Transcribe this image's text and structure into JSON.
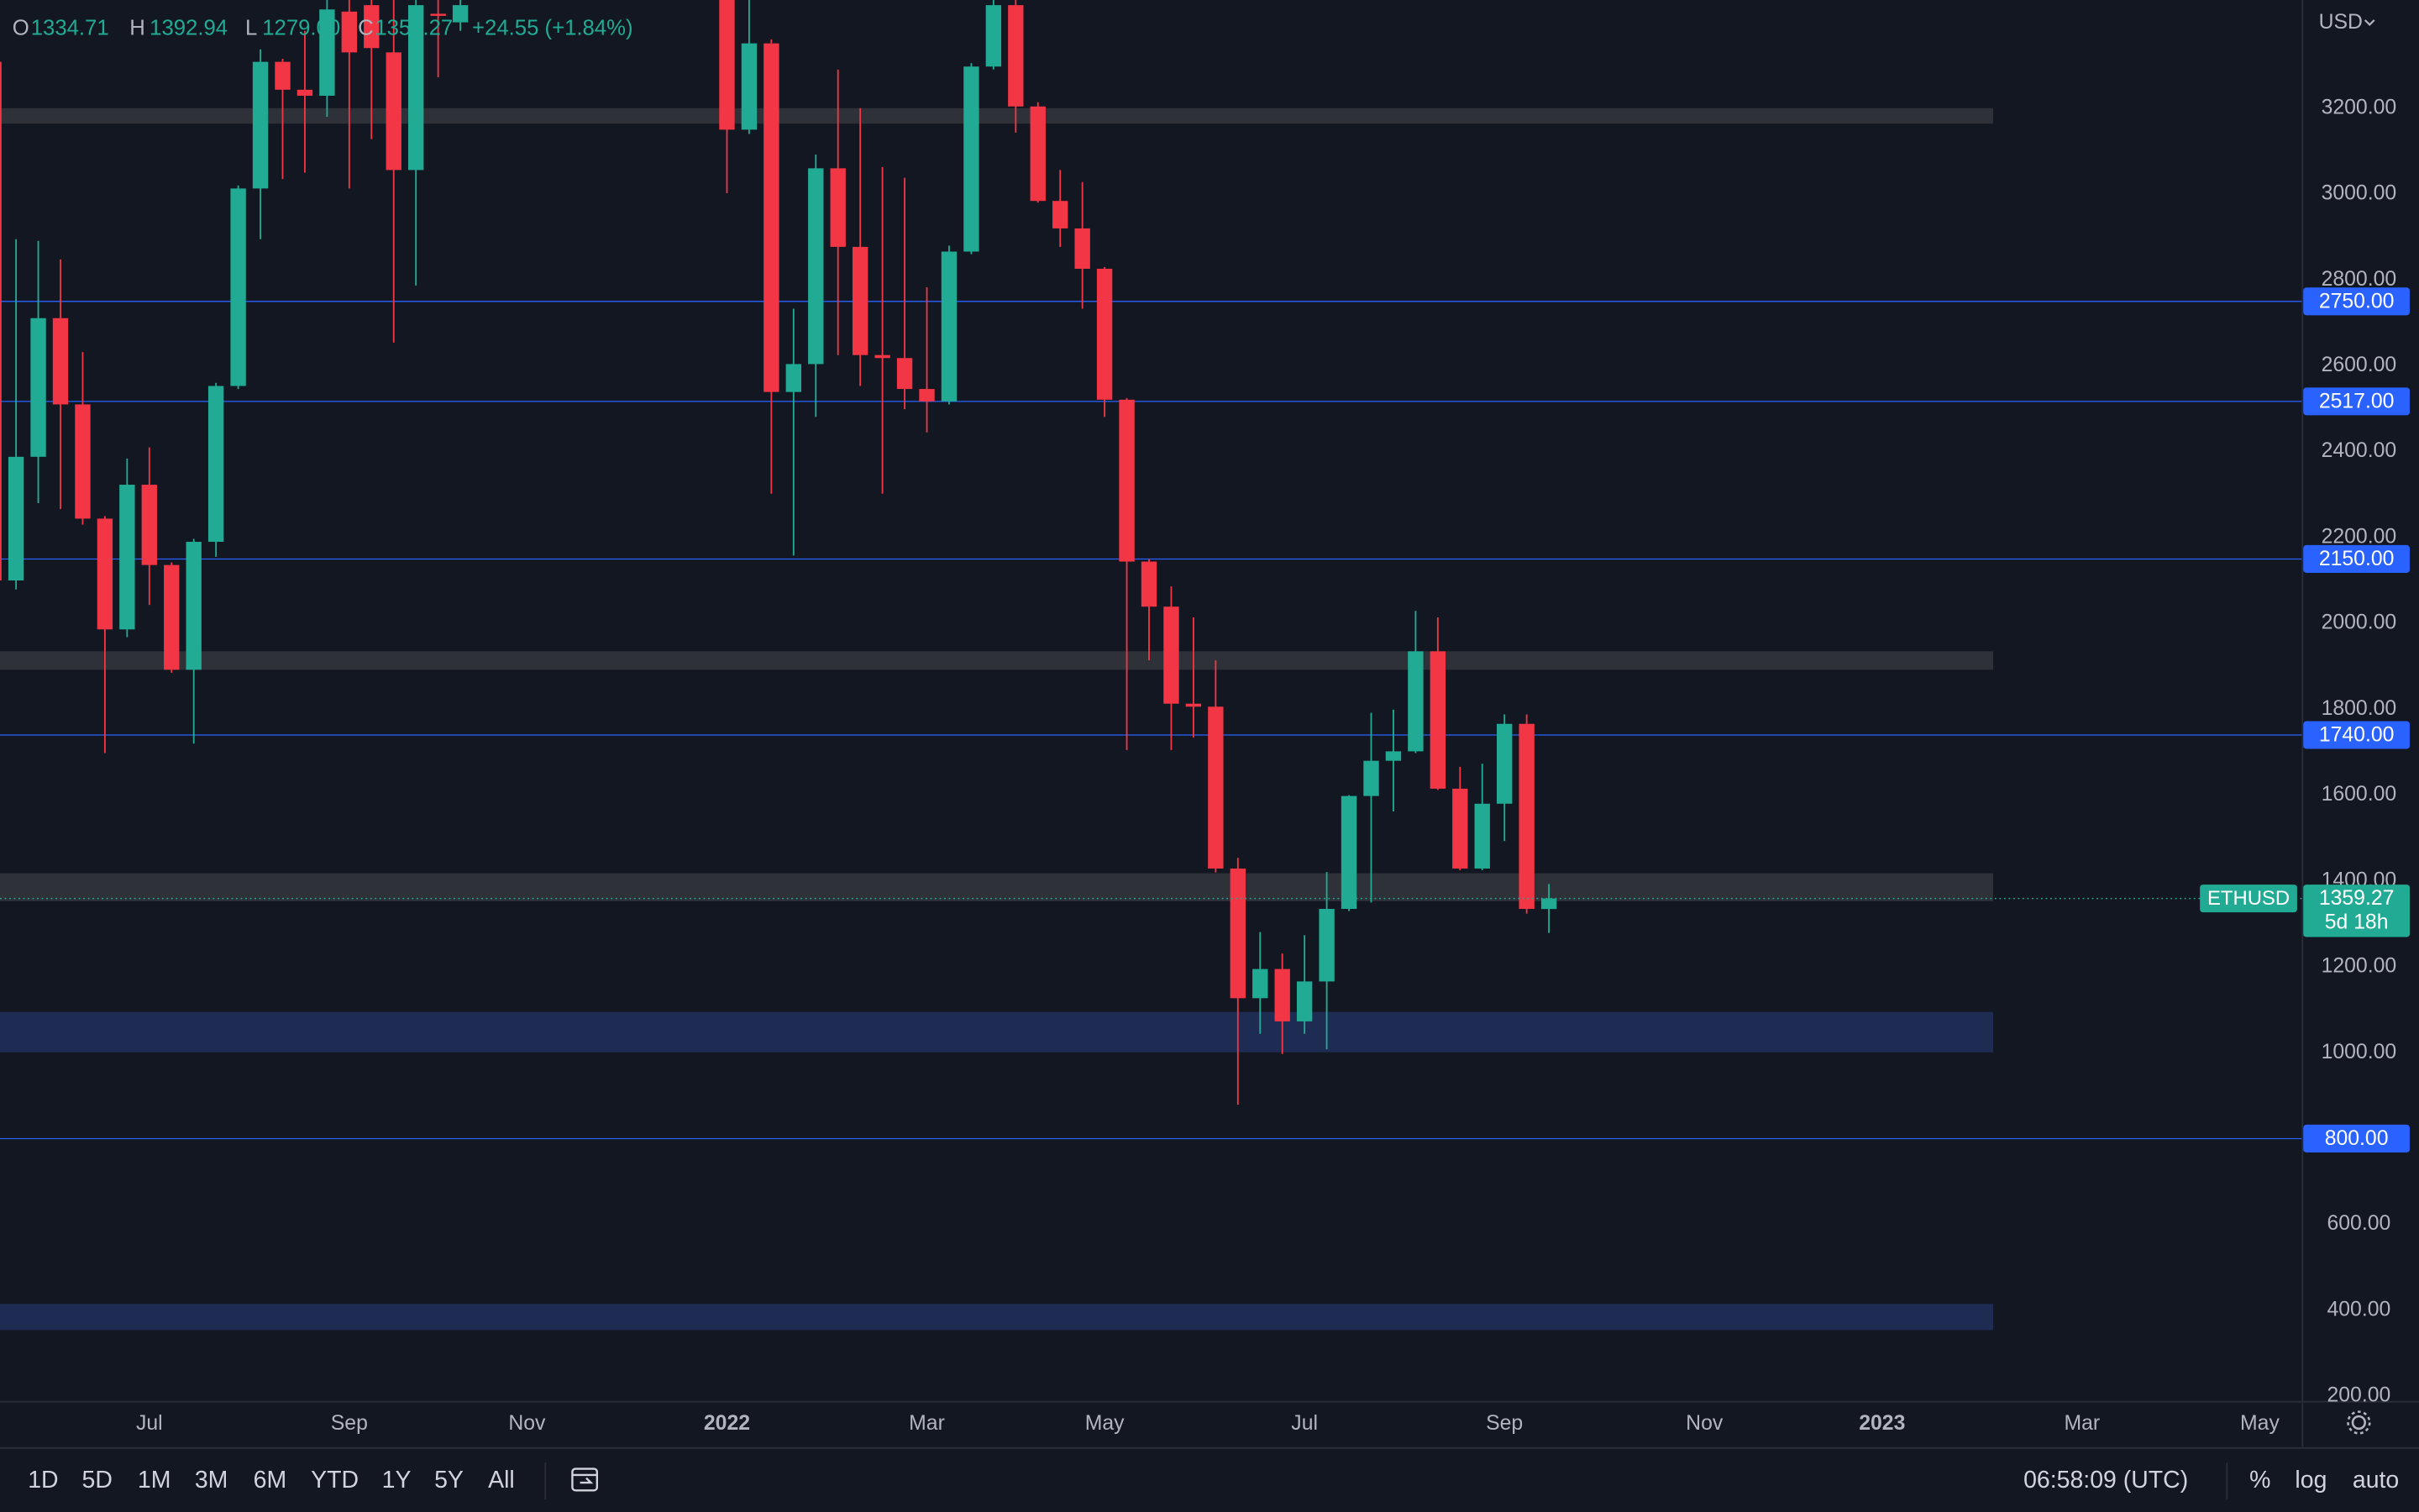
{
  "chart_data": {
    "type": "candlestick",
    "symbol": "ETHUSD",
    "countdown": "5d 18h",
    "up_color": "#22ab94",
    "down_color": "#f23645",
    "grid": false,
    "categories": [
      null,
      null,
      null,
      null,
      null,
      null,
      null,
      "Jul",
      null,
      null,
      null,
      null,
      null,
      null,
      null,
      null,
      "Sep",
      null,
      null,
      null,
      null,
      null,
      null,
      null,
      "Nov",
      null,
      null,
      null,
      null,
      null,
      null,
      null,
      null,
      "2022",
      null,
      null,
      null,
      null,
      null,
      null,
      null,
      null,
      "Mar",
      null,
      null,
      null,
      null,
      null,
      null,
      null,
      "May",
      null,
      null,
      null,
      null,
      null,
      null,
      null,
      null,
      "Jul",
      null,
      null,
      null,
      null,
      null,
      null,
      null,
      null,
      "Sep",
      null,
      null,
      null,
      null,
      null,
      null,
      null,
      null,
      "Nov",
      null,
      null,
      null,
      null,
      null,
      null,
      null,
      "2023",
      null,
      null,
      null,
      null,
      null,
      null,
      null,
      null,
      "Mar",
      null,
      null,
      null,
      null,
      null,
      null,
      null,
      "May",
      null
    ],
    "open": [
      3308,
      2100,
      2388,
      2711,
      2510,
      2244,
      1986,
      2323,
      2136,
      1892,
      2190,
      2553,
      3013,
      3308,
      3243,
      3229,
      3425,
      3440,
      3330,
      3056,
      3420,
      3400,
      null,
      null,
      null,
      null,
      null,
      null,
      null,
      null,
      null,
      null,
      null,
      3760,
      3150,
      3351,
      2539,
      2604,
      3060,
      2877,
      2625,
      2618,
      2546,
      2517,
      2866,
      3297,
      3440,
      3204,
      2984,
      2920,
      2826,
      2521,
      2144,
      2039,
      1813,
      1806,
      1429,
      1127,
      1195,
      1073,
      1166,
      1335,
      1598,
      1680,
      1702,
      1935,
      1615,
      1429,
      1580,
      1766,
      1334.71,
      null,
      null,
      null,
      null,
      null,
      null,
      null,
      null,
      null,
      null,
      null,
      null,
      null,
      null,
      null,
      null,
      null,
      null,
      null,
      null,
      null,
      null,
      null,
      null,
      null,
      null,
      null,
      null,
      null,
      null,
      null,
      null,
      null
    ],
    "high": [
      3450,
      2895,
      2891,
      2848,
      2632,
      2250,
      2384,
      2410,
      2142,
      2197,
      2560,
      3020,
      3337,
      3315,
      3380,
      3500,
      3480,
      3470,
      3470,
      3500,
      3480,
      3480,
      null,
      null,
      null,
      null,
      null,
      null,
      null,
      null,
      null,
      null,
      null,
      3880,
      3480,
      3360,
      2733,
      3092,
      3290,
      3200,
      3063,
      3038,
      2783,
      2880,
      3305,
      3520,
      3480,
      3214,
      3056,
      3028,
      2830,
      2525,
      2150,
      2086,
      2014,
      1914,
      1454,
      1281,
      1231,
      1274,
      1421,
      1600,
      1792,
      1799,
      2029,
      2014,
      1666,
      1673,
      1788,
      1788,
      1392.94,
      null,
      null,
      null,
      null,
      null,
      null,
      null,
      null,
      null,
      null,
      null,
      null,
      null,
      null,
      null,
      null,
      null,
      null,
      null,
      null,
      null,
      null,
      null,
      null,
      null,
      null,
      null,
      null,
      null,
      null,
      null,
      null,
      null
    ],
    "low": [
      1734,
      2079,
      2280,
      2266,
      2230,
      1698,
      1968,
      2043,
      1885,
      1720,
      2155,
      2546,
      2895,
      3035,
      3050,
      3180,
      3013,
      3128,
      2654,
      2787,
      3272,
      3380,
      null,
      null,
      null,
      null,
      null,
      null,
      null,
      null,
      null,
      null,
      null,
      3002,
      3140,
      2302,
      2158,
      2481,
      2625,
      2553,
      2302,
      2499,
      2445,
      2510,
      2860,
      3290,
      3143,
      2980,
      2877,
      2733,
      2481,
      1705,
      1914,
      1705,
      1734,
      1420,
      879,
      1044,
      997,
      1044,
      1008,
      1330,
      1350,
      1562,
      1698,
      1612,
      1425,
      1425,
      1493,
      1324,
      1279,
      null,
      null,
      null,
      null,
      null,
      null,
      null,
      null,
      null,
      null,
      null,
      null,
      null,
      null,
      null,
      null,
      null,
      null,
      null,
      null,
      null,
      null,
      null,
      null,
      null,
      null,
      null,
      null,
      null,
      null,
      null,
      null,
      null
    ],
    "close": [
      2100,
      2388,
      2711,
      2510,
      2244,
      1986,
      2323,
      2136,
      1892,
      2190,
      2553,
      3013,
      3308,
      3243,
      3229,
      3430,
      3330,
      3340,
      3056,
      3440,
      3415,
      3440,
      null,
      null,
      null,
      null,
      null,
      null,
      null,
      null,
      null,
      null,
      null,
      3150,
      3351,
      2539,
      2604,
      3060,
      2877,
      2625,
      2618,
      2546,
      2517,
      2866,
      3297,
      3440,
      3204,
      2984,
      2920,
      2826,
      2521,
      2144,
      2039,
      1813,
      1806,
      1429,
      1127,
      1195,
      1073,
      1166,
      1335,
      1598,
      1680,
      1702,
      1935,
      1615,
      1429,
      1580,
      1766,
      1335,
      1359.27,
      null,
      null,
      null,
      null,
      null,
      null,
      null,
      null,
      null,
      null,
      null,
      null,
      null,
      null,
      null,
      null,
      null,
      null,
      null,
      null,
      null,
      null,
      null,
      null,
      null,
      null,
      null,
      null,
      null,
      null,
      null,
      null,
      null
    ],
    "ylim": [
      189,
      3452
    ],
    "yticks": [
      {
        "value": 3200,
        "label": "3200.00"
      },
      {
        "value": 3000,
        "label": "3000.00"
      },
      {
        "value": 2800,
        "label": "2800.00"
      },
      {
        "value": 2600,
        "label": "2600.00"
      },
      {
        "value": 2400,
        "label": "2400.00"
      },
      {
        "value": 2200,
        "label": "2200.00"
      },
      {
        "value": 2000,
        "label": "2000.00"
      },
      {
        "value": 1800,
        "label": "1800.00"
      },
      {
        "value": 1600,
        "label": "1600.00"
      },
      {
        "value": 1400,
        "label": "1400.00"
      },
      {
        "value": 1200,
        "label": "1200.00"
      },
      {
        "value": 1000,
        "label": "1000.00"
      },
      {
        "value": 600,
        "label": "600.00"
      },
      {
        "value": 400,
        "label": "400.00"
      },
      {
        "value": 200,
        "label": "200.00"
      }
    ],
    "level_color": "#2962ff",
    "levels": [
      {
        "value": 2750,
        "label": "2750.00"
      },
      {
        "value": 2517,
        "label": "2517.00"
      },
      {
        "value": 2150,
        "label": "2150.00"
      },
      {
        "value": 1740,
        "label": "1740.00"
      },
      {
        "value": 800,
        "label": "800.00"
      }
    ],
    "zones": [
      {
        "from": 3164,
        "to": 3200,
        "color": "#2f3139"
      },
      {
        "from": 1892,
        "to": 1935,
        "color": "#2f3139"
      },
      {
        "from": 1353,
        "to": 1418,
        "color": "#2f3139"
      },
      {
        "from": 1001,
        "to": 1095,
        "color": "#1e2b52"
      },
      {
        "from": 354,
        "to": 415,
        "color": "#1e2b52"
      }
    ]
  },
  "ui": {
    "currency": "USD",
    "legend": [
      {
        "key": "O",
        "value": "1334.71"
      },
      {
        "key": "H",
        "value": "1392.94"
      },
      {
        "key": "L",
        "value": "1279.00"
      },
      {
        "key": "C",
        "value": "1359.27"
      }
    ],
    "change": "+24.55 (+1.84%)",
    "ranges": [
      "1D",
      "5D",
      "1M",
      "3M",
      "6M",
      "YTD",
      "1Y",
      "5Y",
      "All"
    ],
    "clock": "06:58:09 (UTC)",
    "percent": "%",
    "log": "log",
    "auto": "auto"
  }
}
